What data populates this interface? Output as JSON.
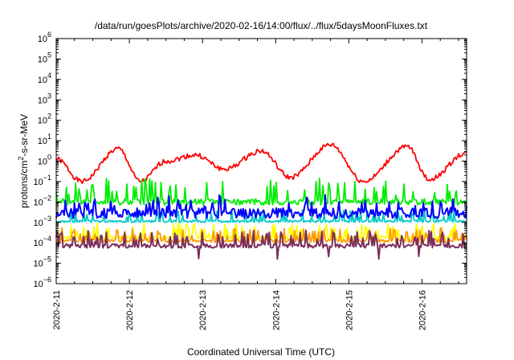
{
  "chart_data": {
    "type": "line",
    "title": "/data/run/goesPlots/archive/2020-02-16/14:00/flux/../flux/5daysMoonFluxes.txt",
    "xlabel": "Coordinated Universal Time (UTC)",
    "ylabel_main": "protons/cm",
    "ylabel_sup": "2",
    "ylabel_tail": "-s-sr-MeV",
    "yscale": "log",
    "ylim_exp": [
      -6,
      6
    ],
    "xlim_days": [
      11.0,
      16.61
    ],
    "x_ticks": [
      {
        "day": 11,
        "label": "2020-2-11"
      },
      {
        "day": 12,
        "label": "2020-2-12"
      },
      {
        "day": 13,
        "label": "2020-2-13"
      },
      {
        "day": 14,
        "label": "2020-2-14"
      },
      {
        "day": 15,
        "label": "2020-2-15"
      },
      {
        "day": 16,
        "label": "2020-2-16"
      }
    ],
    "y_tick_exponents": [
      -6,
      -5,
      -4,
      -3,
      -2,
      -1,
      0,
      1,
      2,
      3,
      4,
      5,
      6
    ],
    "grid": false,
    "series": [
      {
        "color": "#ff0000",
        "base": 0.0,
        "amp": 0.8,
        "spike": 0.0,
        "noise": 0.12,
        "seed": 1,
        "trend": [
          [
            11.0,
            0.1
          ],
          [
            11.35,
            -1.0
          ],
          [
            11.85,
            0.6
          ],
          [
            12.15,
            -1.0
          ],
          [
            12.5,
            0.0
          ],
          [
            12.9,
            0.3
          ],
          [
            13.3,
            -0.4
          ],
          [
            13.8,
            0.5
          ],
          [
            14.2,
            -0.8
          ],
          [
            14.75,
            0.8
          ],
          [
            15.2,
            -1.0
          ],
          [
            15.8,
            0.7
          ],
          [
            16.1,
            -0.9
          ],
          [
            16.61,
            0.4
          ]
        ]
      },
      {
        "color": "#00ee00",
        "base": -2.0,
        "amp": 0.0,
        "spike": 1.1,
        "noise": 0.15,
        "seed": 2
      },
      {
        "color": "#00c8c8",
        "base": -2.95,
        "amp": 0.0,
        "spike": 0.55,
        "noise": 0.05,
        "seed": 3
      },
      {
        "color": "#0000ff",
        "base": -2.55,
        "amp": 0.0,
        "spike": 0.7,
        "noise": 0.25,
        "seed": 4
      },
      {
        "color": "#ffff00",
        "base": -3.75,
        "amp": 0.0,
        "spike": 0.7,
        "noise": 0.08,
        "seed": 5
      },
      {
        "color": "#ff9900",
        "base": -3.9,
        "amp": 0.0,
        "spike": 0.6,
        "noise": 0.08,
        "seed": 6
      },
      {
        "color": "#7b2f5a",
        "base": -4.15,
        "amp": 0.0,
        "spike": 0.75,
        "noise": 0.1,
        "seed": 7
      }
    ]
  }
}
